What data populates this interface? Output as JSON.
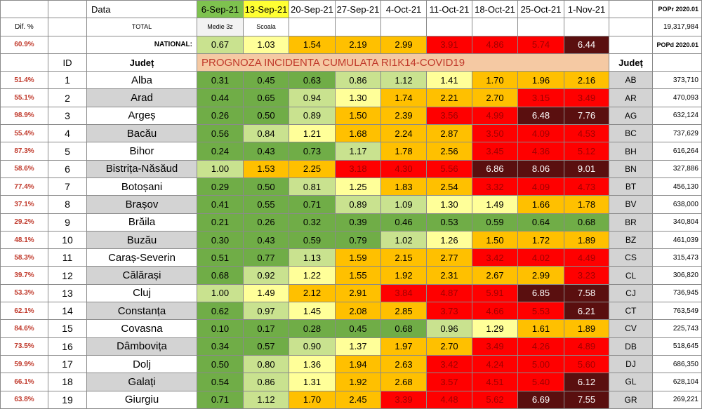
{
  "header": {
    "dif_label": "Dif. %",
    "data_label": "Data",
    "total_label": "TOTAL",
    "national_label": "NATIONAL:",
    "national_dif": "60.9%",
    "id_label": "ID",
    "judet_label": "Județ",
    "judet_label_right": "Județ",
    "prognoza_title": "PROGNOZA INCIDENTA CUMULATA RI1K14-COVID19",
    "dates": [
      "6-Sep-21",
      "13-Sep-21",
      "20-Sep-21",
      "27-Sep-21",
      "4-Oct-21",
      "11-Oct-21",
      "18-Oct-21",
      "25-Oct-21",
      "1-Nov-21"
    ],
    "sub_6sep": "Medie 3z",
    "sub_13sep": "Scoala",
    "national_values": [
      "0.67",
      "1.03",
      "1.54",
      "2.19",
      "2.99",
      "3.91",
      "4.86",
      "5.74",
      "6.44"
    ],
    "popr_label": "POPr 2020.01",
    "popr_value": "19,317,984",
    "popd_label": "POPd 2020.01"
  },
  "rows": [
    {
      "dif": "51.4%",
      "id": "1",
      "name": "Alba",
      "values": [
        "0.31",
        "0.45",
        "0.63",
        "0.86",
        "1.12",
        "1.41",
        "1.70",
        "1.96",
        "2.16"
      ],
      "abbr": "AB",
      "pop": "373,710"
    },
    {
      "dif": "55.1%",
      "id": "2",
      "name": "Arad",
      "values": [
        "0.44",
        "0.65",
        "0.94",
        "1.30",
        "1.74",
        "2.21",
        "2.70",
        "3.15",
        "3.49"
      ],
      "abbr": "AR",
      "pop": "470,093"
    },
    {
      "dif": "98.9%",
      "id": "3",
      "name": "Argeș",
      "values": [
        "0.26",
        "0.50",
        "0.89",
        "1.50",
        "2.39",
        "3.56",
        "4.99",
        "6.48",
        "7.76"
      ],
      "abbr": "AG",
      "pop": "632,124"
    },
    {
      "dif": "55.4%",
      "id": "4",
      "name": "Bacău",
      "values": [
        "0.56",
        "0.84",
        "1.21",
        "1.68",
        "2.24",
        "2.87",
        "3.50",
        "4.09",
        "4.53"
      ],
      "abbr": "BC",
      "pop": "737,629"
    },
    {
      "dif": "87.3%",
      "id": "5",
      "name": "Bihor",
      "values": [
        "0.24",
        "0.43",
        "0.73",
        "1.17",
        "1.78",
        "2.56",
        "3.45",
        "4.36",
        "5.12"
      ],
      "abbr": "BH",
      "pop": "616,264"
    },
    {
      "dif": "58.6%",
      "id": "6",
      "name": "Bistrița-Năsăud",
      "values": [
        "1.00",
        "1.53",
        "2.25",
        "3.18",
        "4.30",
        "5.56",
        "6.86",
        "8.06",
        "9.01"
      ],
      "abbr": "BN",
      "pop": "327,886"
    },
    {
      "dif": "77.4%",
      "id": "7",
      "name": "Botoșani",
      "values": [
        "0.29",
        "0.50",
        "0.81",
        "1.25",
        "1.83",
        "2.54",
        "3.32",
        "4.09",
        "4.73"
      ],
      "abbr": "BT",
      "pop": "456,130"
    },
    {
      "dif": "37.1%",
      "id": "8",
      "name": "Brașov",
      "values": [
        "0.41",
        "0.55",
        "0.71",
        "0.89",
        "1.09",
        "1.30",
        "1.49",
        "1.66",
        "1.78"
      ],
      "abbr": "BV",
      "pop": "638,000"
    },
    {
      "dif": "29.2%",
      "id": "9",
      "name": "Brăila",
      "values": [
        "0.21",
        "0.26",
        "0.32",
        "0.39",
        "0.46",
        "0.53",
        "0.59",
        "0.64",
        "0.68"
      ],
      "abbr": "BR",
      "pop": "340,804"
    },
    {
      "dif": "48.1%",
      "id": "10",
      "name": "Buzău",
      "values": [
        "0.30",
        "0.43",
        "0.59",
        "0.79",
        "1.02",
        "1.26",
        "1.50",
        "1.72",
        "1.89"
      ],
      "abbr": "BZ",
      "pop": "461,039"
    },
    {
      "dif": "58.3%",
      "id": "11",
      "name": "Caraș-Severin",
      "values": [
        "0.51",
        "0.77",
        "1.13",
        "1.59",
        "2.15",
        "2.77",
        "3.42",
        "4.02",
        "4.49"
      ],
      "abbr": "CS",
      "pop": "315,473"
    },
    {
      "dif": "39.7%",
      "id": "12",
      "name": "Călărași",
      "values": [
        "0.68",
        "0.92",
        "1.22",
        "1.55",
        "1.92",
        "2.31",
        "2.67",
        "2.99",
        "3.23"
      ],
      "abbr": "CL",
      "pop": "306,820"
    },
    {
      "dif": "53.3%",
      "id": "13",
      "name": "Cluj",
      "values": [
        "1.00",
        "1.49",
        "2.12",
        "2.91",
        "3.84",
        "4.87",
        "5.91",
        "6.85",
        "7.58"
      ],
      "abbr": "CJ",
      "pop": "736,945"
    },
    {
      "dif": "62.1%",
      "id": "14",
      "name": "Constanța",
      "values": [
        "0.62",
        "0.97",
        "1.45",
        "2.08",
        "2.85",
        "3.73",
        "4.66",
        "5.53",
        "6.21"
      ],
      "abbr": "CT",
      "pop": "763,549"
    },
    {
      "dif": "84.6%",
      "id": "15",
      "name": "Covasna",
      "values": [
        "0.10",
        "0.17",
        "0.28",
        "0.45",
        "0.68",
        "0.96",
        "1.29",
        "1.61",
        "1.89"
      ],
      "abbr": "CV",
      "pop": "225,743"
    },
    {
      "dif": "73.5%",
      "id": "16",
      "name": "Dâmbovița",
      "values": [
        "0.34",
        "0.57",
        "0.90",
        "1.37",
        "1.97",
        "2.70",
        "3.49",
        "4.26",
        "4.89"
      ],
      "abbr": "DB",
      "pop": "518,645"
    },
    {
      "dif": "59.9%",
      "id": "17",
      "name": "Dolj",
      "values": [
        "0.50",
        "0.80",
        "1.36",
        "1.94",
        "2.63",
        "3.42",
        "4.24",
        "5.00",
        "5.60"
      ],
      "abbr": "DJ",
      "pop": "686,350"
    },
    {
      "dif": "66.1%",
      "id": "18",
      "name": "Galați",
      "values": [
        "0.54",
        "0.86",
        "1.31",
        "1.92",
        "2.68",
        "3.57",
        "4.51",
        "5.40",
        "6.12"
      ],
      "abbr": "GL",
      "pop": "628,104"
    },
    {
      "dif": "63.8%",
      "id": "19",
      "name": "Giurgiu",
      "values": [
        "0.71",
        "1.12",
        "1.70",
        "2.45",
        "3.39",
        "4.48",
        "5.62",
        "6.69",
        "7.55"
      ],
      "abbr": "GR",
      "pop": "269,221"
    }
  ],
  "colors": {
    "dark_green": "#70ad47",
    "light_green": "#c9e28f",
    "light_yellow": "#ffff99",
    "orange_yellow": "#ffc000",
    "orange": "#ff8c00",
    "red": "#ff0000",
    "dark_red": "#5a0f0f",
    "prognoza_bg": "#f5c9a3"
  }
}
